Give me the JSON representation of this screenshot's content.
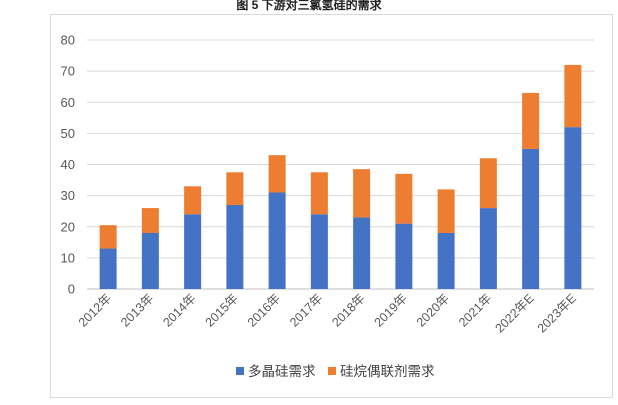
{
  "title": "图 5 下游对三氯氢硅的需求",
  "chart_data": {
    "type": "bar",
    "stacked": true,
    "categories": [
      "2012年",
      "2013年",
      "2014年",
      "2015年",
      "2016年",
      "2017年",
      "2018年",
      "2019年",
      "2020年",
      "2021年",
      "2022年E",
      "2023年E"
    ],
    "series": [
      {
        "name": "多晶硅需求",
        "color": "#4472c4",
        "values": [
          13,
          18,
          24,
          27,
          31,
          24,
          23,
          21,
          18,
          26,
          45,
          52
        ]
      },
      {
        "name": "硅烷偶联剂需求",
        "color": "#ed7d31",
        "values": [
          7.5,
          8,
          9,
          10.5,
          12,
          13.5,
          15.5,
          16,
          14,
          16,
          18,
          20
        ]
      }
    ],
    "ylim": [
      0,
      80
    ],
    "yticks": [
      0,
      10,
      20,
      30,
      40,
      50,
      60,
      70,
      80
    ],
    "grid": true,
    "legend": "bottom"
  }
}
